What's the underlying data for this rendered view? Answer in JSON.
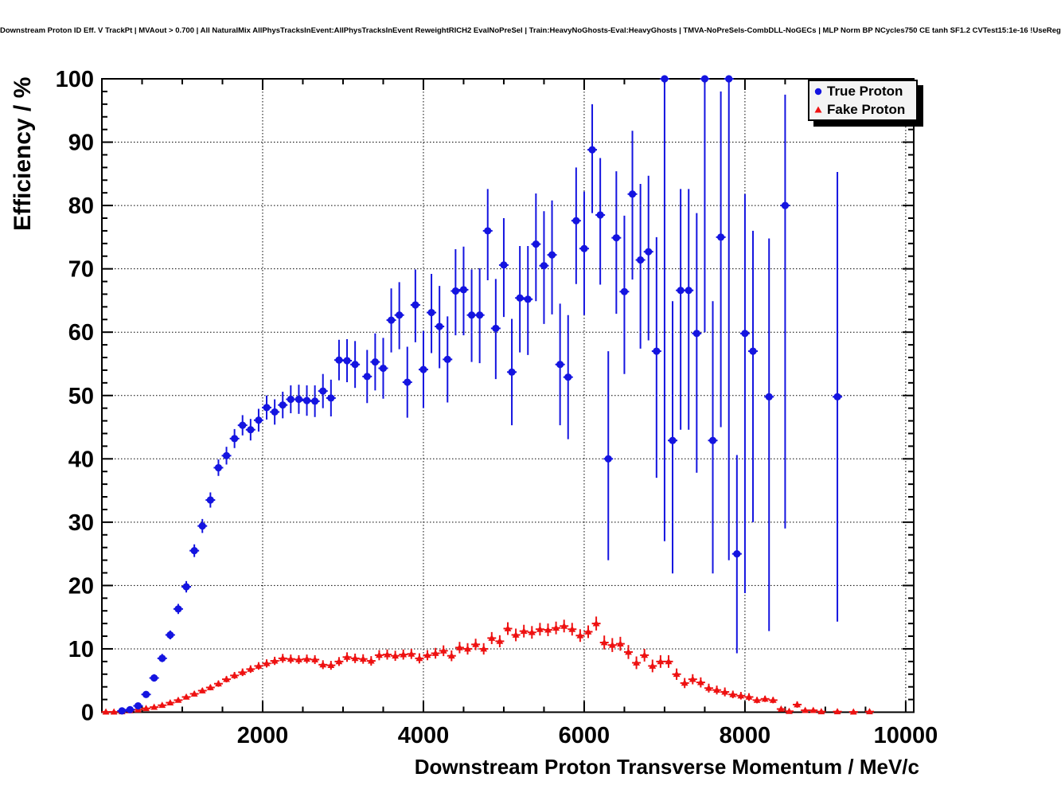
{
  "title": "Downstream Proton ID Eff. V TrackPt | MVAout > 0.700 | All NaturalMix AllPhysTracksInEvent:AllPhysTracksInEvent ReweightRICH2 EvalNoPreSel | Train:HeavyNoGhosts-Eval:HeavyGhosts | TMVA-NoPreSels-CombDLL-NoGECs | MLP Norm BP NCycles750 CE tanh SF1.2 CVTest15:1e-16 !UseReg",
  "chart_data": {
    "type": "scatter",
    "title": "Downstream Proton ID Eff. V TrackPt | MVAout > 0.700 | All NaturalMix AllPhysTracksInEvent:AllPhysTracksInEvent ReweightRICH2 EvalNoPreSel | Train:HeavyNoGhosts-Eval:HeavyGhosts | TMVA-NoPreSels-CombDLL-NoGECs | MLP Norm BP NCycles750 CE tanh SF1.2 CVTest15:1e-16 !UseReg",
    "xlabel": "Downstream Proton Transverse Momentum / MeV/c",
    "ylabel": "Efficiency / %",
    "xlim": [
      0,
      10100
    ],
    "ylim": [
      0,
      100
    ],
    "x_major_ticks": [
      2000,
      4000,
      6000,
      8000,
      10000
    ],
    "x_minor_step": 500,
    "y_major_ticks": [
      0,
      10,
      20,
      30,
      40,
      50,
      60,
      70,
      80,
      90,
      100
    ],
    "y_minor_step": 2,
    "grid": "dotted-at-major-ticks-both-axes",
    "legend_position": "top-right",
    "colors": {
      "true_proton": "#1414e0",
      "fake_proton": "#ee1111",
      "frame": "#000000",
      "background": "#ffffff"
    },
    "series": [
      {
        "name": "True Proton",
        "marker": "circle",
        "color": "#1414e0",
        "point_format": "[pt_MeV, efficiency_pct, err_low, err_high]",
        "points": [
          [
            250,
            0.2,
            0.2,
            0.3
          ],
          [
            350,
            0.4,
            0.2,
            0.3
          ],
          [
            450,
            1.0,
            0.3,
            0.4
          ],
          [
            550,
            2.8,
            0.4,
            0.5
          ],
          [
            650,
            5.4,
            0.5,
            0.6
          ],
          [
            750,
            8.5,
            0.6,
            0.7
          ],
          [
            850,
            12.2,
            0.7,
            0.7
          ],
          [
            950,
            16.3,
            0.8,
            0.8
          ],
          [
            1050,
            19.8,
            0.9,
            0.9
          ],
          [
            1150,
            25.5,
            1.0,
            1.0
          ],
          [
            1250,
            29.4,
            1.1,
            1.1
          ],
          [
            1350,
            33.5,
            1.2,
            1.2
          ],
          [
            1450,
            38.6,
            1.3,
            1.3
          ],
          [
            1550,
            40.5,
            1.4,
            1.4
          ],
          [
            1650,
            43.2,
            1.5,
            1.5
          ],
          [
            1750,
            45.3,
            1.6,
            1.6
          ],
          [
            1850,
            44.6,
            1.7,
            1.7
          ],
          [
            1950,
            46.1,
            1.8,
            1.8
          ],
          [
            2050,
            48.1,
            1.9,
            1.9
          ],
          [
            2150,
            47.4,
            2.0,
            2.0
          ],
          [
            2250,
            48.5,
            2.1,
            2.1
          ],
          [
            2350,
            49.4,
            2.2,
            2.2
          ],
          [
            2450,
            49.4,
            2.3,
            2.3
          ],
          [
            2550,
            49.2,
            2.4,
            2.4
          ],
          [
            2650,
            49.1,
            2.5,
            2.5
          ],
          [
            2750,
            50.7,
            2.7,
            2.7
          ],
          [
            2850,
            49.6,
            2.9,
            2.9
          ],
          [
            2950,
            55.6,
            3.2,
            3.2
          ],
          [
            3050,
            55.5,
            3.4,
            3.4
          ],
          [
            3150,
            54.9,
            3.7,
            3.7
          ],
          [
            3300,
            53.0,
            4.2,
            4.2
          ],
          [
            3400,
            55.3,
            4.5,
            4.5
          ],
          [
            3500,
            54.3,
            4.8,
            4.8
          ],
          [
            3600,
            61.9,
            5.1,
            5.0
          ],
          [
            3700,
            62.7,
            5.4,
            5.2
          ],
          [
            3800,
            52.1,
            5.6,
            5.6
          ],
          [
            3900,
            64.3,
            5.9,
            5.6
          ],
          [
            4000,
            54.1,
            6.1,
            6.1
          ],
          [
            4100,
            63.1,
            6.4,
            6.1
          ],
          [
            4200,
            60.9,
            6.6,
            6.4
          ],
          [
            4300,
            55.7,
            6.8,
            6.8
          ],
          [
            4400,
            66.5,
            7.0,
            6.6
          ],
          [
            4500,
            66.7,
            7.2,
            6.8
          ],
          [
            4600,
            62.7,
            7.4,
            7.2
          ],
          [
            4700,
            62.7,
            7.6,
            7.4
          ],
          [
            4800,
            76.0,
            7.8,
            6.6
          ],
          [
            4900,
            60.6,
            8.0,
            7.8
          ],
          [
            5000,
            70.6,
            8.2,
            7.4
          ],
          [
            5100,
            53.7,
            8.4,
            8.4
          ],
          [
            5200,
            65.4,
            8.6,
            8.2
          ],
          [
            5300,
            65.2,
            8.8,
            8.4
          ],
          [
            5400,
            73.9,
            9.0,
            8.0
          ],
          [
            5500,
            70.5,
            9.2,
            8.6
          ],
          [
            5600,
            72.2,
            9.4,
            8.6
          ],
          [
            5700,
            54.9,
            9.6,
            9.6
          ],
          [
            5800,
            52.9,
            9.8,
            9.8
          ],
          [
            5900,
            77.6,
            10.0,
            8.4
          ],
          [
            6000,
            73.2,
            10.5,
            9.0
          ],
          [
            6100,
            88.8,
            10.0,
            7.2
          ],
          [
            6200,
            78.5,
            11.0,
            9.0
          ],
          [
            6300,
            40.0,
            16.0,
            17.0
          ],
          [
            6400,
            74.9,
            12.0,
            10.5
          ],
          [
            6500,
            66.4,
            13.0,
            12.0
          ],
          [
            6600,
            81.8,
            13.5,
            10.0
          ],
          [
            6700,
            71.4,
            14.0,
            12.0
          ],
          [
            6800,
            72.7,
            14.0,
            12.0
          ],
          [
            6900,
            57.0,
            20.0,
            18.0
          ],
          [
            7000,
            100.0,
            73.0,
            0
          ],
          [
            7100,
            42.9,
            21.0,
            22.0
          ],
          [
            7200,
            66.6,
            22.0,
            16.0
          ],
          [
            7300,
            66.6,
            22.0,
            16.0
          ],
          [
            7400,
            59.8,
            22.0,
            19.0
          ],
          [
            7500,
            100.0,
            40.0,
            0
          ],
          [
            7600,
            42.9,
            21.0,
            22.0
          ],
          [
            7700,
            75.0,
            30.0,
            23.0
          ],
          [
            7800,
            100.0,
            76.0,
            0
          ],
          [
            7900,
            25.0,
            15.7,
            15.6
          ],
          [
            8000,
            59.8,
            41.0,
            22.0
          ],
          [
            8100,
            57.0,
            27.0,
            19.0
          ],
          [
            8300,
            49.8,
            37.0,
            25.0
          ],
          [
            8500,
            80.0,
            51.0,
            17.5
          ],
          [
            9150,
            49.8,
            35.5,
            35.5
          ]
        ]
      },
      {
        "name": "Fake Proton",
        "marker": "triangle",
        "color": "#ee1111",
        "point_format": "[pt_MeV, efficiency_pct, err]",
        "points": [
          [
            50,
            0.05,
            0.05
          ],
          [
            150,
            0.05,
            0.05
          ],
          [
            250,
            0.1,
            0.1
          ],
          [
            350,
            0.25,
            0.1
          ],
          [
            450,
            0.4,
            0.15
          ],
          [
            550,
            0.6,
            0.2
          ],
          [
            650,
            0.8,
            0.2
          ],
          [
            750,
            1.1,
            0.25
          ],
          [
            850,
            1.5,
            0.3
          ],
          [
            950,
            1.9,
            0.3
          ],
          [
            1050,
            2.4,
            0.35
          ],
          [
            1150,
            2.9,
            0.4
          ],
          [
            1250,
            3.4,
            0.4
          ],
          [
            1350,
            3.9,
            0.45
          ],
          [
            1450,
            4.5,
            0.5
          ],
          [
            1550,
            5.2,
            0.5
          ],
          [
            1650,
            5.8,
            0.55
          ],
          [
            1750,
            6.3,
            0.6
          ],
          [
            1850,
            6.8,
            0.6
          ],
          [
            1950,
            7.3,
            0.6
          ],
          [
            2050,
            7.7,
            0.65
          ],
          [
            2150,
            8.1,
            0.65
          ],
          [
            2250,
            8.5,
            0.7
          ],
          [
            2350,
            8.4,
            0.7
          ],
          [
            2450,
            8.3,
            0.7
          ],
          [
            2550,
            8.4,
            0.7
          ],
          [
            2650,
            8.3,
            0.7
          ],
          [
            2750,
            7.5,
            0.7
          ],
          [
            2850,
            7.4,
            0.7
          ],
          [
            2950,
            8.0,
            0.7
          ],
          [
            3050,
            8.7,
            0.75
          ],
          [
            3150,
            8.5,
            0.75
          ],
          [
            3250,
            8.4,
            0.75
          ],
          [
            3350,
            8.1,
            0.75
          ],
          [
            3450,
            9.0,
            0.8
          ],
          [
            3550,
            9.1,
            0.8
          ],
          [
            3650,
            8.9,
            0.8
          ],
          [
            3750,
            9.1,
            0.8
          ],
          [
            3850,
            9.2,
            0.8
          ],
          [
            3950,
            8.5,
            0.8
          ],
          [
            4050,
            9.0,
            0.8
          ],
          [
            4150,
            9.3,
            0.85
          ],
          [
            4250,
            9.7,
            0.85
          ],
          [
            4350,
            8.9,
            0.85
          ],
          [
            4450,
            10.2,
            0.9
          ],
          [
            4550,
            10.0,
            0.9
          ],
          [
            4650,
            10.7,
            0.9
          ],
          [
            4750,
            10.0,
            0.9
          ],
          [
            4850,
            11.7,
            0.95
          ],
          [
            4950,
            11.2,
            0.95
          ],
          [
            5050,
            13.2,
            1.0
          ],
          [
            5150,
            12.2,
            1.0
          ],
          [
            5250,
            12.8,
            1.0
          ],
          [
            5350,
            12.6,
            1.0
          ],
          [
            5450,
            13.1,
            1.0
          ],
          [
            5550,
            13.0,
            1.0
          ],
          [
            5650,
            13.3,
            1.0
          ],
          [
            5750,
            13.6,
            1.0
          ],
          [
            5850,
            13.1,
            1.0
          ],
          [
            5950,
            12.1,
            1.0
          ],
          [
            6050,
            12.7,
            1.0
          ],
          [
            6150,
            14.0,
            1.1
          ],
          [
            6250,
            11.0,
            1.1
          ],
          [
            6350,
            10.6,
            1.1
          ],
          [
            6450,
            10.8,
            1.1
          ],
          [
            6550,
            9.5,
            1.1
          ],
          [
            6650,
            7.8,
            1.0
          ],
          [
            6750,
            9.0,
            1.0
          ],
          [
            6850,
            7.3,
            1.0
          ],
          [
            6950,
            8.0,
            1.0
          ],
          [
            7050,
            8.0,
            1.0
          ],
          [
            7150,
            6.0,
            0.9
          ],
          [
            7250,
            4.6,
            0.8
          ],
          [
            7350,
            5.2,
            0.8
          ],
          [
            7450,
            4.7,
            0.8
          ],
          [
            7550,
            3.8,
            0.7
          ],
          [
            7650,
            3.5,
            0.7
          ],
          [
            7750,
            3.2,
            0.7
          ],
          [
            7850,
            2.8,
            0.6
          ],
          [
            7950,
            2.6,
            0.6
          ],
          [
            8050,
            2.4,
            0.6
          ],
          [
            8150,
            1.9,
            0.5
          ],
          [
            8250,
            2.1,
            0.5
          ],
          [
            8350,
            1.9,
            0.5
          ],
          [
            8450,
            0.5,
            0.3
          ],
          [
            8550,
            0.15,
            0.15
          ],
          [
            8650,
            1.2,
            0.5
          ],
          [
            8750,
            0.3,
            0.2
          ],
          [
            8850,
            0.3,
            0.2
          ],
          [
            8950,
            0.1,
            0.1
          ],
          [
            9150,
            0.1,
            0.1
          ],
          [
            9350,
            0.05,
            0.05
          ],
          [
            9550,
            0.1,
            0.1
          ]
        ]
      }
    ]
  },
  "legend": {
    "items": [
      {
        "label": "True Proton",
        "marker": "blue-circle"
      },
      {
        "label": "Fake Proton",
        "marker": "red-triangle"
      }
    ]
  }
}
